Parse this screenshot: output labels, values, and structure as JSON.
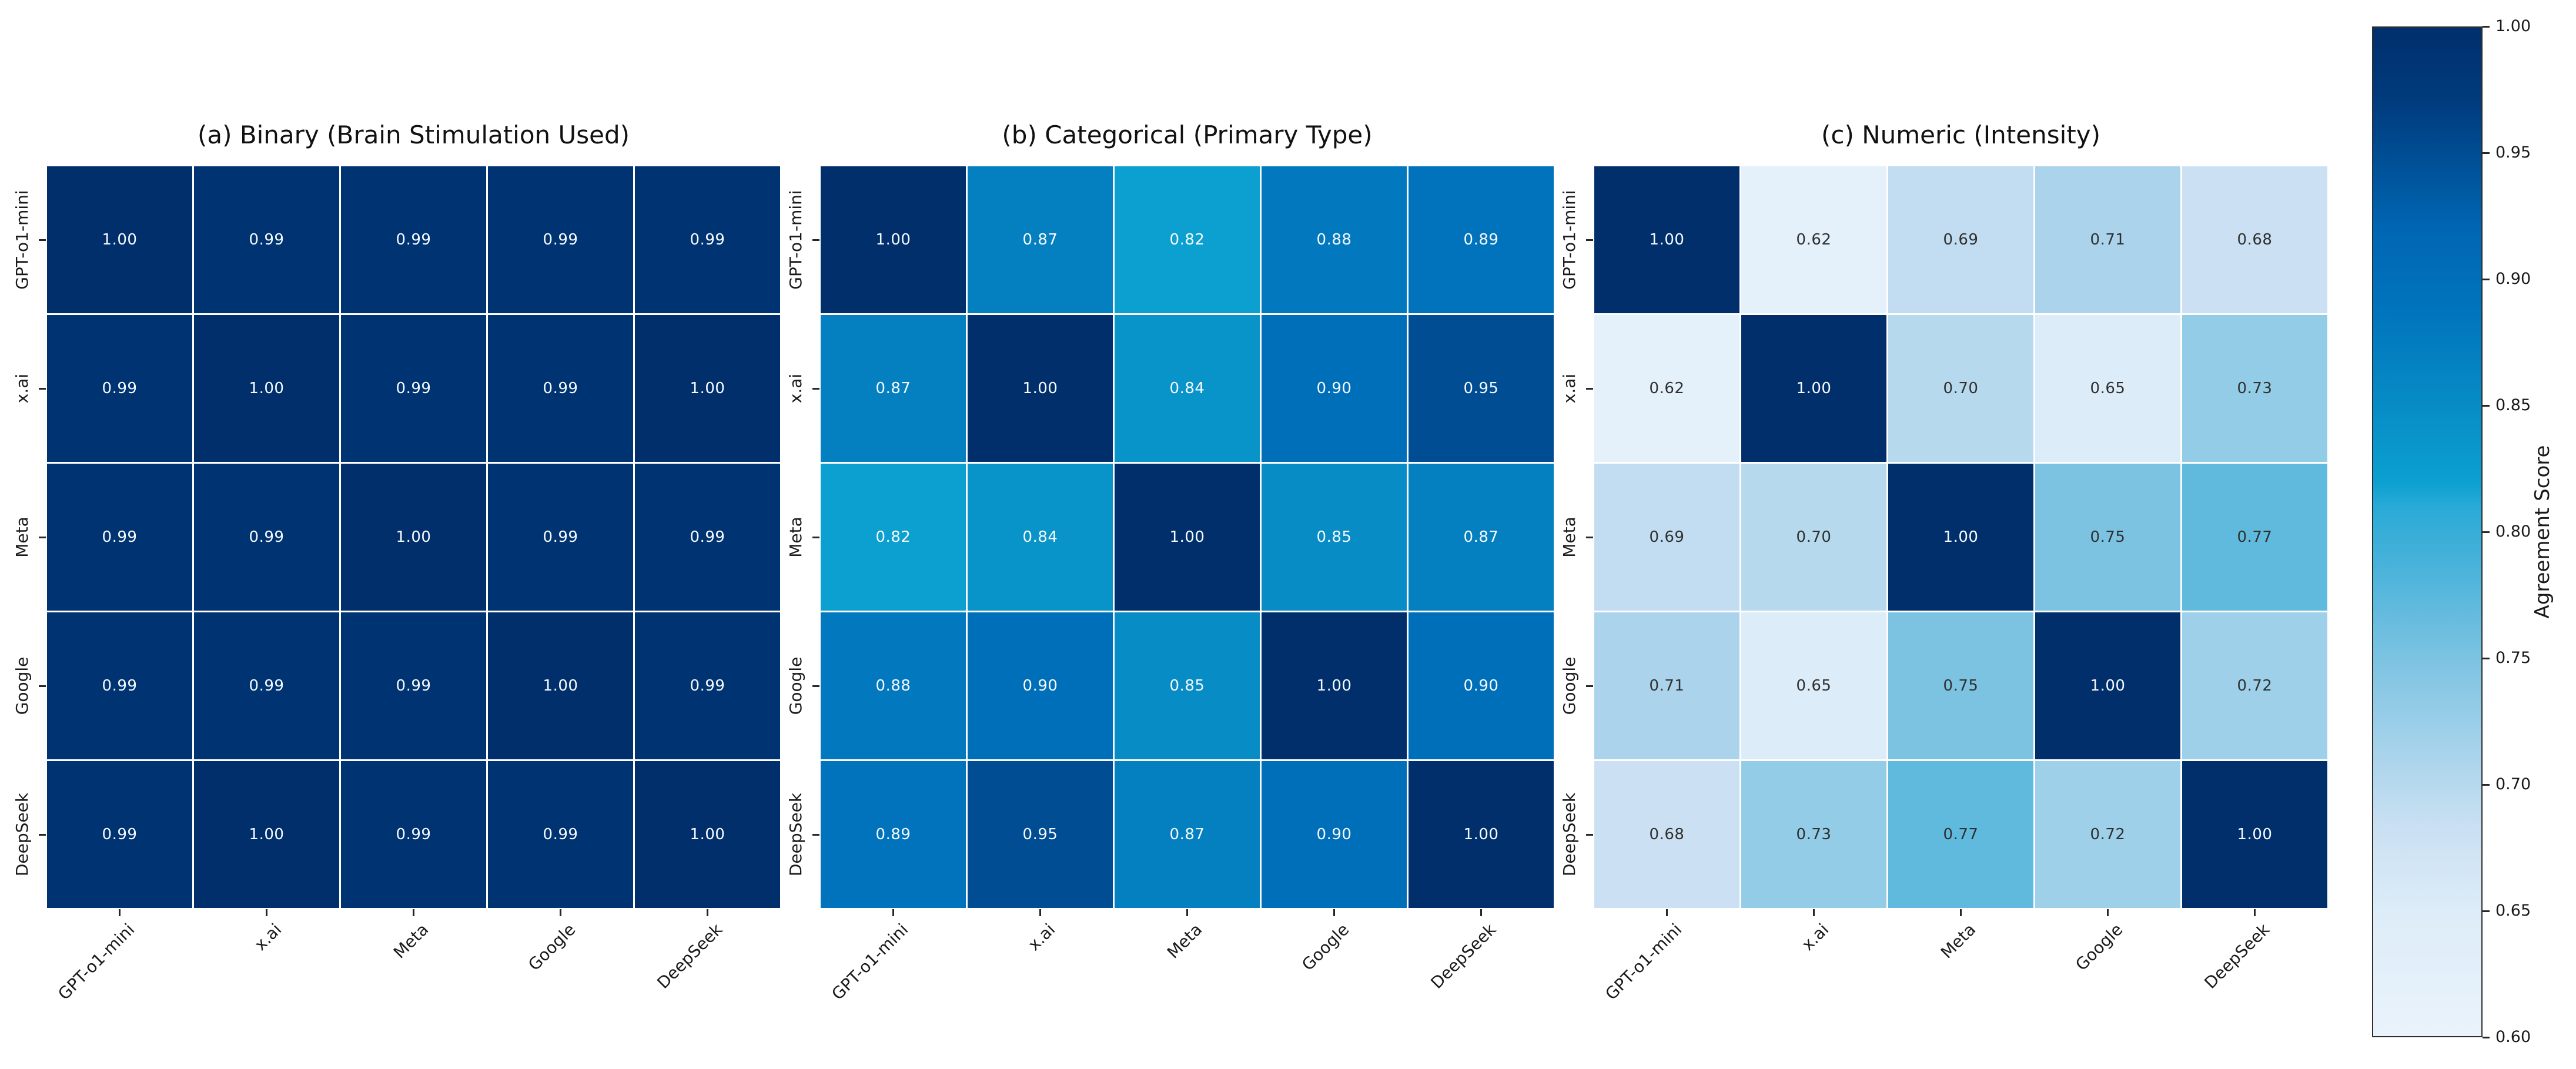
{
  "chart_data": [
    {
      "type": "heatmap",
      "title": "(a) Binary (Brain Stimulation Used)",
      "x_labels": [
        "GPT-o1-mini",
        "x.ai",
        "Meta",
        "Google",
        "DeepSeek"
      ],
      "y_labels": [
        "GPT-o1-mini",
        "x.ai",
        "Meta",
        "Google",
        "DeepSeek"
      ],
      "values": [
        [
          1.0,
          0.99,
          0.99,
          0.99,
          0.99
        ],
        [
          0.99,
          1.0,
          0.99,
          0.99,
          1.0
        ],
        [
          0.99,
          0.99,
          1.0,
          0.99,
          0.99
        ],
        [
          0.99,
          0.99,
          0.99,
          1.0,
          0.99
        ],
        [
          0.99,
          1.0,
          0.99,
          0.99,
          1.0
        ]
      ]
    },
    {
      "type": "heatmap",
      "title": "(b) Categorical (Primary Type)",
      "x_labels": [
        "GPT-o1-mini",
        "x.ai",
        "Meta",
        "Google",
        "DeepSeek"
      ],
      "y_labels": [
        "GPT-o1-mini",
        "x.ai",
        "Meta",
        "Google",
        "DeepSeek"
      ],
      "values": [
        [
          1.0,
          0.87,
          0.82,
          0.88,
          0.89
        ],
        [
          0.87,
          1.0,
          0.84,
          0.9,
          0.95
        ],
        [
          0.82,
          0.84,
          1.0,
          0.85,
          0.87
        ],
        [
          0.88,
          0.9,
          0.85,
          1.0,
          0.9
        ],
        [
          0.89,
          0.95,
          0.87,
          0.9,
          1.0
        ]
      ]
    },
    {
      "type": "heatmap",
      "title": "(c) Numeric (Intensity)",
      "x_labels": [
        "GPT-o1-mini",
        "x.ai",
        "Meta",
        "Google",
        "DeepSeek"
      ],
      "y_labels": [
        "GPT-o1-mini",
        "x.ai",
        "Meta",
        "Google",
        "DeepSeek"
      ],
      "values": [
        [
          1.0,
          0.62,
          0.69,
          0.71,
          0.68
        ],
        [
          0.62,
          1.0,
          0.7,
          0.65,
          0.73
        ],
        [
          0.69,
          0.7,
          1.0,
          0.75,
          0.77
        ],
        [
          0.71,
          0.65,
          0.75,
          1.0,
          0.72
        ],
        [
          0.68,
          0.73,
          0.77,
          0.72,
          1.0
        ]
      ]
    }
  ],
  "colorbar": {
    "label": "Agreement Score",
    "vmin": 0.6,
    "vmax": 1.0,
    "ticks": [
      "1.00",
      "0.95",
      "0.90",
      "0.85",
      "0.80",
      "0.75",
      "0.70",
      "0.65",
      "0.60"
    ]
  },
  "colors": {
    "scale_stops": [
      [
        0.6,
        "#eaf3fb"
      ],
      [
        0.65,
        "#dcecf8"
      ],
      [
        0.685,
        "#c8dff2"
      ],
      [
        0.75,
        "#7cc3e2"
      ],
      [
        0.785,
        "#4bb3da"
      ],
      [
        0.81,
        "#29aad7"
      ],
      [
        0.82,
        "#0ba0d0"
      ],
      [
        0.85,
        "#078cc6"
      ],
      [
        0.89,
        "#0073bc"
      ],
      [
        0.92,
        "#0066b3"
      ],
      [
        0.97,
        "#003c7e"
      ],
      [
        1.0,
        "#002f6c"
      ]
    ],
    "light_text_threshold": 0.8,
    "text_on_dark": "#f7fafc",
    "text_on_light": "#303030",
    "axis_text": "#1a1a1a"
  }
}
